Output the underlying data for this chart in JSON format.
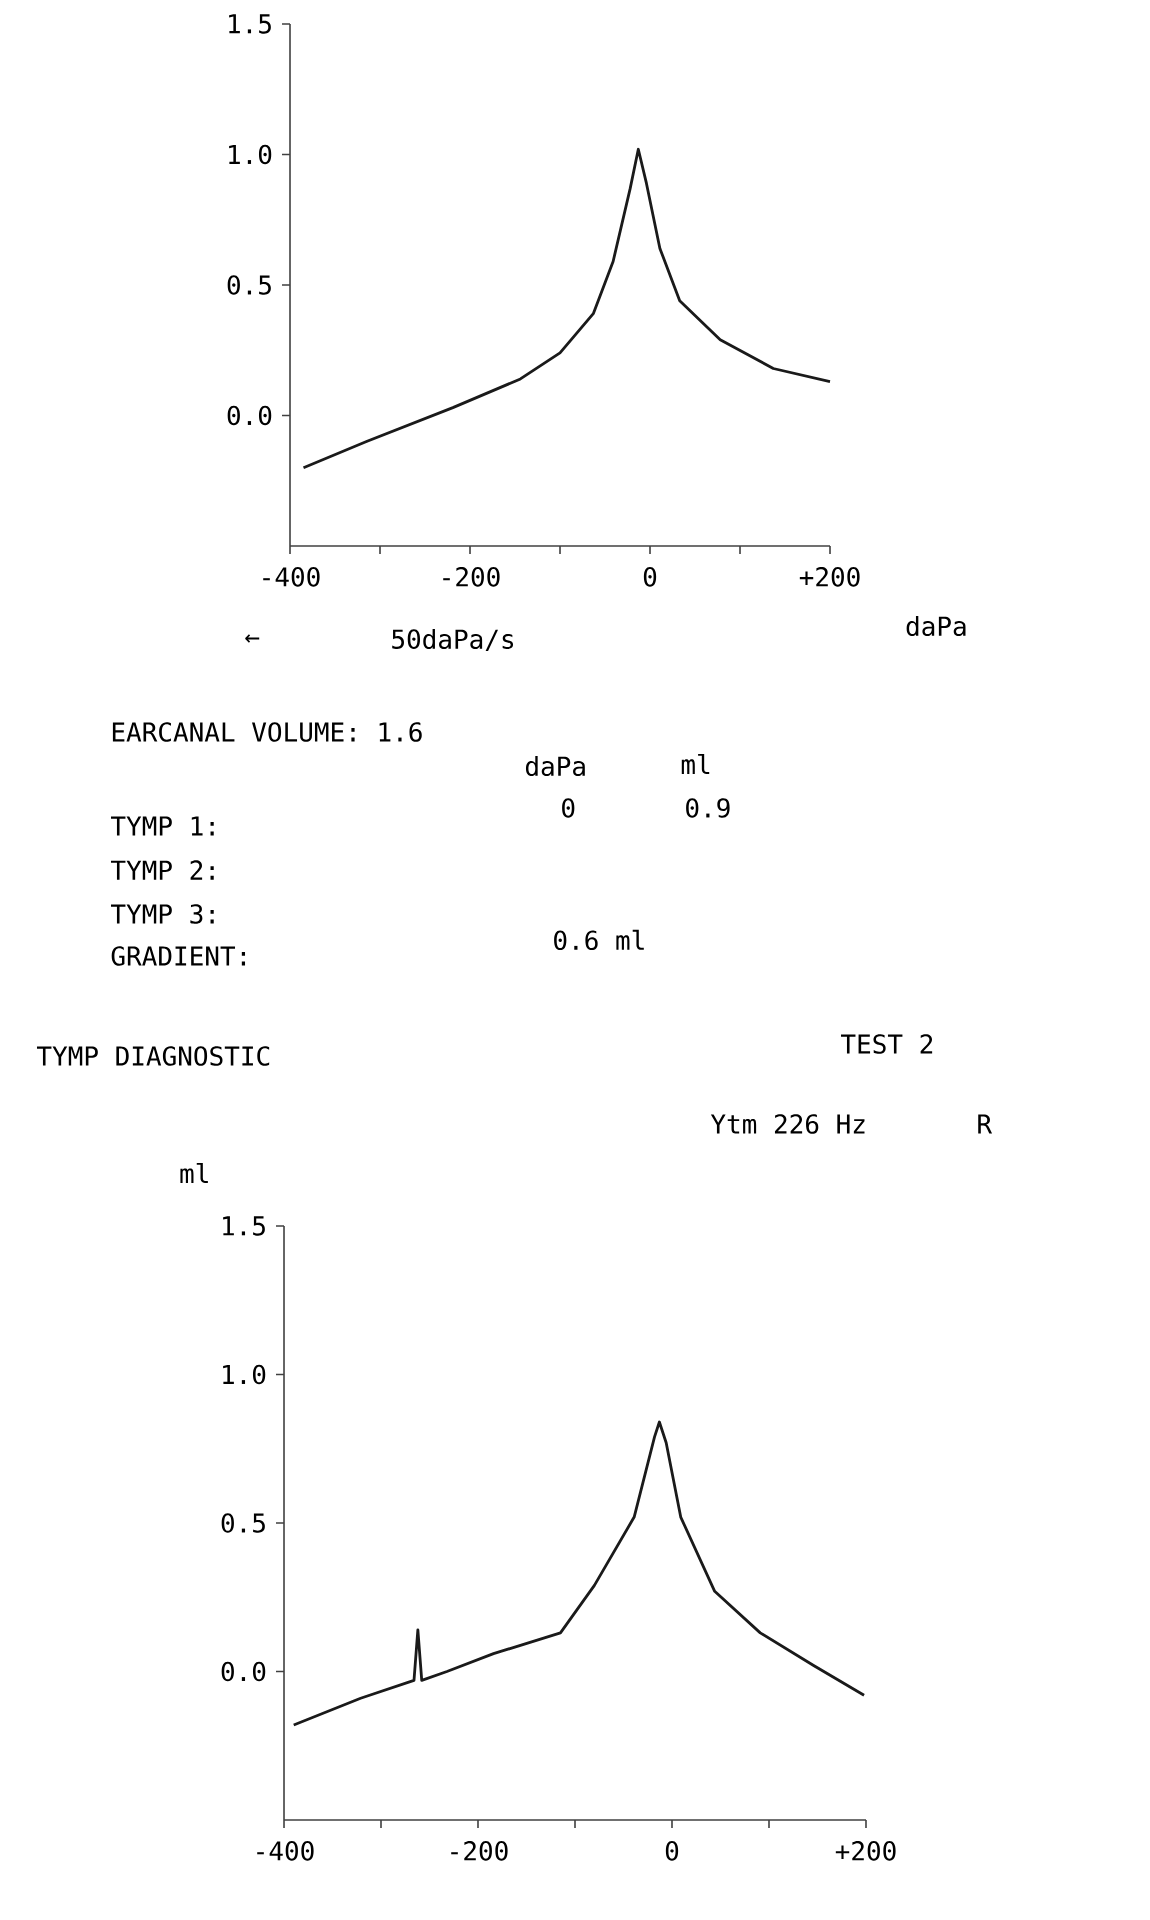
{
  "chart_data": [
    {
      "type": "line",
      "xlabel": "daPa",
      "color": "#1a1a1a",
      "annotations": [
        "←",
        "50daPa/s",
        "EARCANAL VOLUME: 1.6",
        "daPa",
        "ml",
        "TYMP 1:",
        "0",
        "0.9",
        "TYMP 2:",
        "TYMP 3:",
        "GRADIENT:",
        "0.6  ml"
      ],
      "x": [
        -385,
        -315,
        -219,
        -144,
        -100,
        -63,
        -41,
        -22,
        -13,
        -4,
        11,
        33,
        78,
        137,
        200
      ],
      "values": [
        -0.2,
        -0.1,
        0.03,
        0.14,
        0.24,
        0.39,
        0.59,
        0.87,
        1.02,
        0.89,
        0.64,
        0.44,
        0.29,
        0.18,
        0.13
      ],
      "xlim": [
        -400,
        200
      ],
      "ylim": [
        -0.5,
        1.5
      ],
      "xticks": [
        -400,
        {
          "value": -300,
          "label": null
        },
        -200,
        {
          "value": -100,
          "label": null
        },
        0,
        {
          "value": 100,
          "label": null
        },
        {
          "value": 200,
          "label": "+200"
        }
      ],
      "yticks": [
        {
          "value": 0,
          "label": "0.0"
        },
        {
          "value": 0.5,
          "label": "0.5"
        },
        {
          "value": 1,
          "label": "1.0"
        },
        {
          "value": 1.5,
          "label": "1.5"
        }
      ]
    },
    {
      "type": "line",
      "title": "TYMP DIAGNOSTIC",
      "ylabel": "ml",
      "color": "#1a1a1a",
      "annotations": [
        "TEST 2",
        "Ytm 226 Hz",
        "R"
      ],
      "x": [
        -390,
        -321,
        -266,
        -262,
        -258,
        -232,
        -184,
        -115,
        -80,
        -39,
        -18,
        -13,
        -6,
        9,
        44,
        91,
        146,
        198
      ],
      "values": [
        -0.18,
        -0.09,
        -0.03,
        0.14,
        -0.03,
        0.0,
        0.06,
        0.13,
        0.29,
        0.52,
        0.79,
        0.84,
        0.77,
        0.52,
        0.27,
        0.13,
        0.02,
        -0.08
      ],
      "xlim": [
        -400,
        200
      ],
      "ylim": [
        -0.5,
        1.5
      ],
      "xticks": [
        -400,
        {
          "value": -300,
          "label": null
        },
        -200,
        {
          "value": -100,
          "label": null
        },
        0,
        {
          "value": 100,
          "label": null
        },
        {
          "value": 200,
          "label": "+200"
        }
      ],
      "yticks": [
        {
          "value": 0,
          "label": "0.0"
        },
        {
          "value": 0.5,
          "label": "0.5"
        },
        {
          "value": 1,
          "label": "1.0"
        },
        {
          "value": 1.5,
          "label": "1.5"
        }
      ]
    }
  ]
}
